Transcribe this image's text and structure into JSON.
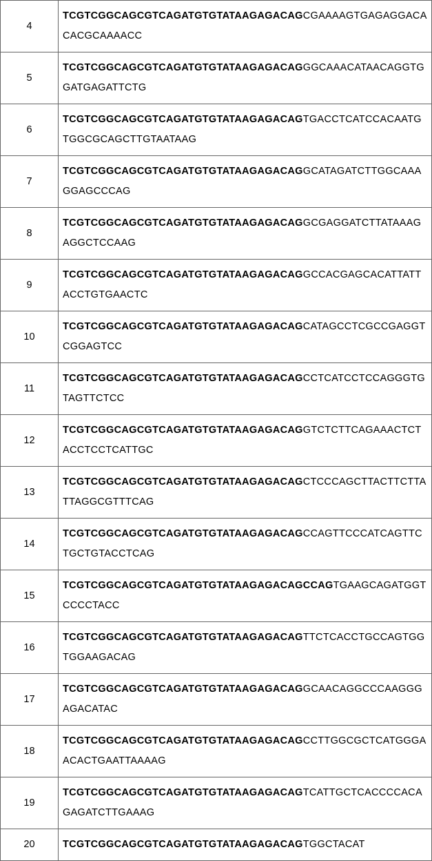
{
  "rows": [
    {
      "id": "4",
      "bold": "TCGTCGGCAGCGTCAGATGTGTATAAGAGACAG",
      "rest": "CGAAAAGTGAGAGGACACACGCAAAACC"
    },
    {
      "id": "5",
      "bold": "TCGTCGGCAGCGTCAGATGTGTATAAGAGACAG",
      "rest": "GGCAAACATAACAGGTGGATGAGATTCTG"
    },
    {
      "id": "6",
      "bold": "TCGTCGGCAGCGTCAGATGTGTATAAGAGACAG",
      "rest": "TGACCTCATCCACAATGTGGCGCAGCTTGTAATAAG"
    },
    {
      "id": "7",
      "bold": "TCGTCGGCAGCGTCAGATGTGTATAAGAGACAG",
      "rest": "GCATAGATCTTGGCAAAGGAGCCCAG"
    },
    {
      "id": "8",
      "bold": "TCGTCGGCAGCGTCAGATGTGTATAAGAGACAG",
      "rest": "GCGAGGATCTTATAAAGAGGCTCCAAG"
    },
    {
      "id": "9",
      "bold": "TCGTCGGCAGCGTCAGATGTGTATAAGAGACAG",
      "rest": "GCCACGAGCACATTATTACCTGTGAACTC"
    },
    {
      "id": "10",
      "bold": "TCGTCGGCAGCGTCAGATGTGTATAAGAGACAG",
      "rest": "CATAGCCTCGCCGAGGTCGGAGTCC"
    },
    {
      "id": "11",
      "bold": "TCGTCGGCAGCGTCAGATGTGTATAAGAGACAG",
      "rest": "CCTCATCCTCCAGGGTGTAGTTCTCC"
    },
    {
      "id": "12",
      "bold": "TCGTCGGCAGCGTCAGATGTGTATAAGAGACAG",
      "rest": "GTCTCTTCAGAAACTCTACCTCCTCATTGC"
    },
    {
      "id": "13",
      "bold": "TCGTCGGCAGCGTCAGATGTGTATAAGAGACAG",
      "rest": "CTCCCAGCTTACTTCTTATTAGGCGTTTCAG"
    },
    {
      "id": "14",
      "bold": "TCGTCGGCAGCGTCAGATGTGTATAAGAGACAG",
      "rest": "CCAGTTCCCATCAGTTCTGCTGTACCTCAG"
    },
    {
      "id": "15",
      "bold": "TCGTCGGCAGCGTCAGATGTGTATAAGAGACAGCCAG",
      "rest": "TGAAGCAGATGGTCCCCTACC"
    },
    {
      "id": "16",
      "bold": "TCGTCGGCAGCGTCAGATGTGTATAAGAGACAG",
      "rest": "TTCTCACCTGCCAGTGGTGGAAGACAG"
    },
    {
      "id": "17",
      "bold": "TCGTCGGCAGCGTCAGATGTGTATAAGAGACAG",
      "rest": "GCAACAGGCCCAAGGGAGACATAC"
    },
    {
      "id": "18",
      "bold": "TCGTCGGCAGCGTCAGATGTGTATAAGAGACAG",
      "rest": "CCTTGGCGCTCATGGGAACACTGAATTAAAAG"
    },
    {
      "id": "19",
      "bold": "TCGTCGGCAGCGTCAGATGTGTATAAGAGACAG",
      "rest": "TCATTGCTCACCCCACAGAGATCTTGAAAG"
    },
    {
      "id": "20",
      "bold": "TCGTCGGCAGCGTCAGATGTGTATAAGAGACAG",
      "rest": "TGGCTACAT"
    }
  ]
}
